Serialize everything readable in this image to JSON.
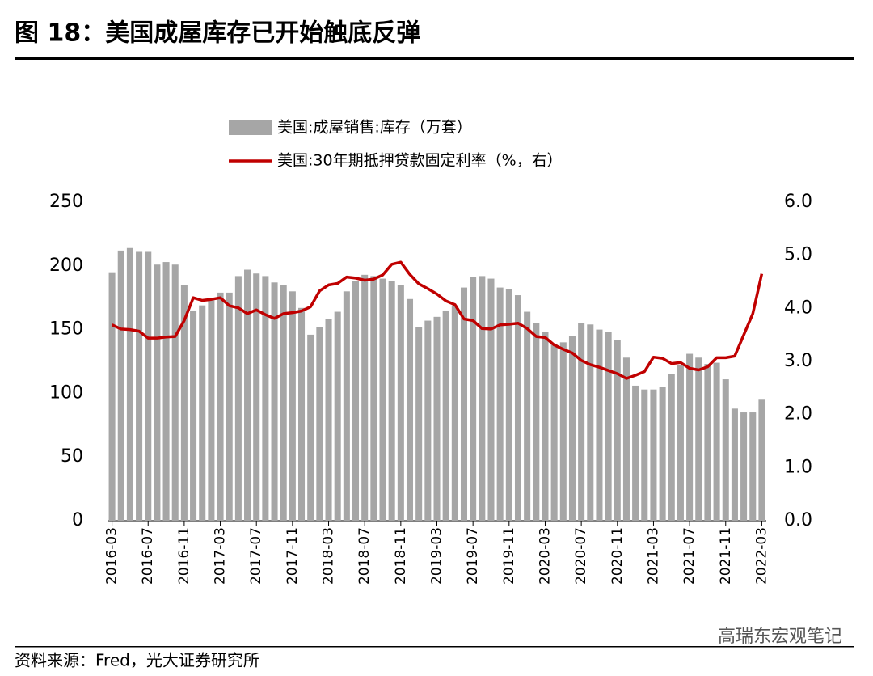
{
  "chart_data": {
    "type": "bar_line",
    "title": "图 18：美国成屋库存已开始触底反弹",
    "source": "资料来源：Fred，光大证券研究所",
    "watermark": "高瑞东宏观笔记",
    "categories": [
      "2016-03",
      null,
      null,
      null,
      "2016-07",
      null,
      null,
      null,
      "2016-11",
      null,
      null,
      null,
      "2017-03",
      null,
      null,
      null,
      "2017-07",
      null,
      null,
      null,
      "2017-11",
      null,
      null,
      null,
      "2018-03",
      null,
      null,
      null,
      "2018-07",
      null,
      null,
      null,
      "2018-11",
      null,
      null,
      null,
      "2019-03",
      null,
      null,
      null,
      "2019-07",
      null,
      null,
      null,
      "2019-11",
      null,
      null,
      null,
      "2020-03",
      null,
      null,
      null,
      "2020-07",
      null,
      null,
      null,
      "2020-11",
      null,
      null,
      null,
      "2021-03",
      null,
      null,
      null,
      "2021-07",
      null,
      null,
      null,
      "2021-11",
      null,
      null,
      null,
      "2022-03"
    ],
    "series": [
      {
        "name": "美国:成屋销售:库存（万套）",
        "color": "#a6a6a6",
        "type": "bar",
        "values": [
          195,
          212,
          214,
          211,
          211,
          201,
          203,
          201,
          185,
          165,
          169,
          173,
          179,
          179,
          192,
          197,
          194,
          192,
          187,
          185,
          180,
          167,
          146,
          152,
          158,
          164,
          180,
          188,
          193,
          192,
          190,
          188,
          185,
          174,
          152,
          157,
          160,
          165,
          169,
          183,
          191,
          192,
          190,
          183,
          182,
          177,
          164,
          155,
          148,
          139,
          140,
          145,
          155,
          154,
          150,
          148,
          142,
          128,
          106,
          103,
          103,
          105,
          115,
          122,
          131,
          128,
          123,
          124,
          111,
          88,
          85,
          85,
          95
        ]
      },
      {
        "name": "美国:30年期抵押贷款固定利率（%，右）",
        "color": "#c00000",
        "type": "line",
        "axis": "y2",
        "values": [
          3.69,
          3.61,
          3.6,
          3.57,
          3.44,
          3.44,
          3.46,
          3.47,
          3.77,
          4.2,
          4.15,
          4.17,
          4.2,
          4.05,
          4.01,
          3.9,
          3.97,
          3.88,
          3.81,
          3.9,
          3.92,
          3.95,
          4.03,
          4.33,
          4.44,
          4.47,
          4.59,
          4.57,
          4.53,
          4.55,
          4.63,
          4.83,
          4.87,
          4.64,
          4.46,
          4.37,
          4.27,
          4.14,
          4.07,
          3.8,
          3.77,
          3.62,
          3.61,
          3.69,
          3.7,
          3.72,
          3.62,
          3.47,
          3.45,
          3.31,
          3.23,
          3.16,
          3.02,
          2.94,
          2.89,
          2.83,
          2.77,
          2.68,
          2.74,
          2.81,
          3.08,
          3.06,
          2.96,
          2.98,
          2.87,
          2.84,
          2.9,
          3.07,
          3.07,
          3.1,
          3.5,
          3.9,
          4.65
        ]
      }
    ],
    "ylim": [
      0,
      250
    ],
    "yticks": [
      0,
      50,
      100,
      150,
      200,
      250
    ],
    "y2lim": [
      0,
      6
    ],
    "y2ticks": [
      {
        "value": 0,
        "label": "0.0"
      },
      {
        "value": 1,
        "label": "1.0"
      },
      {
        "value": 2,
        "label": "2.0"
      },
      {
        "value": 3,
        "label": "3.0"
      },
      {
        "value": 4,
        "label": "4.0"
      },
      {
        "value": 5,
        "label": "5.0"
      },
      {
        "value": 6,
        "label": "6.0"
      }
    ],
    "legend": "top"
  }
}
